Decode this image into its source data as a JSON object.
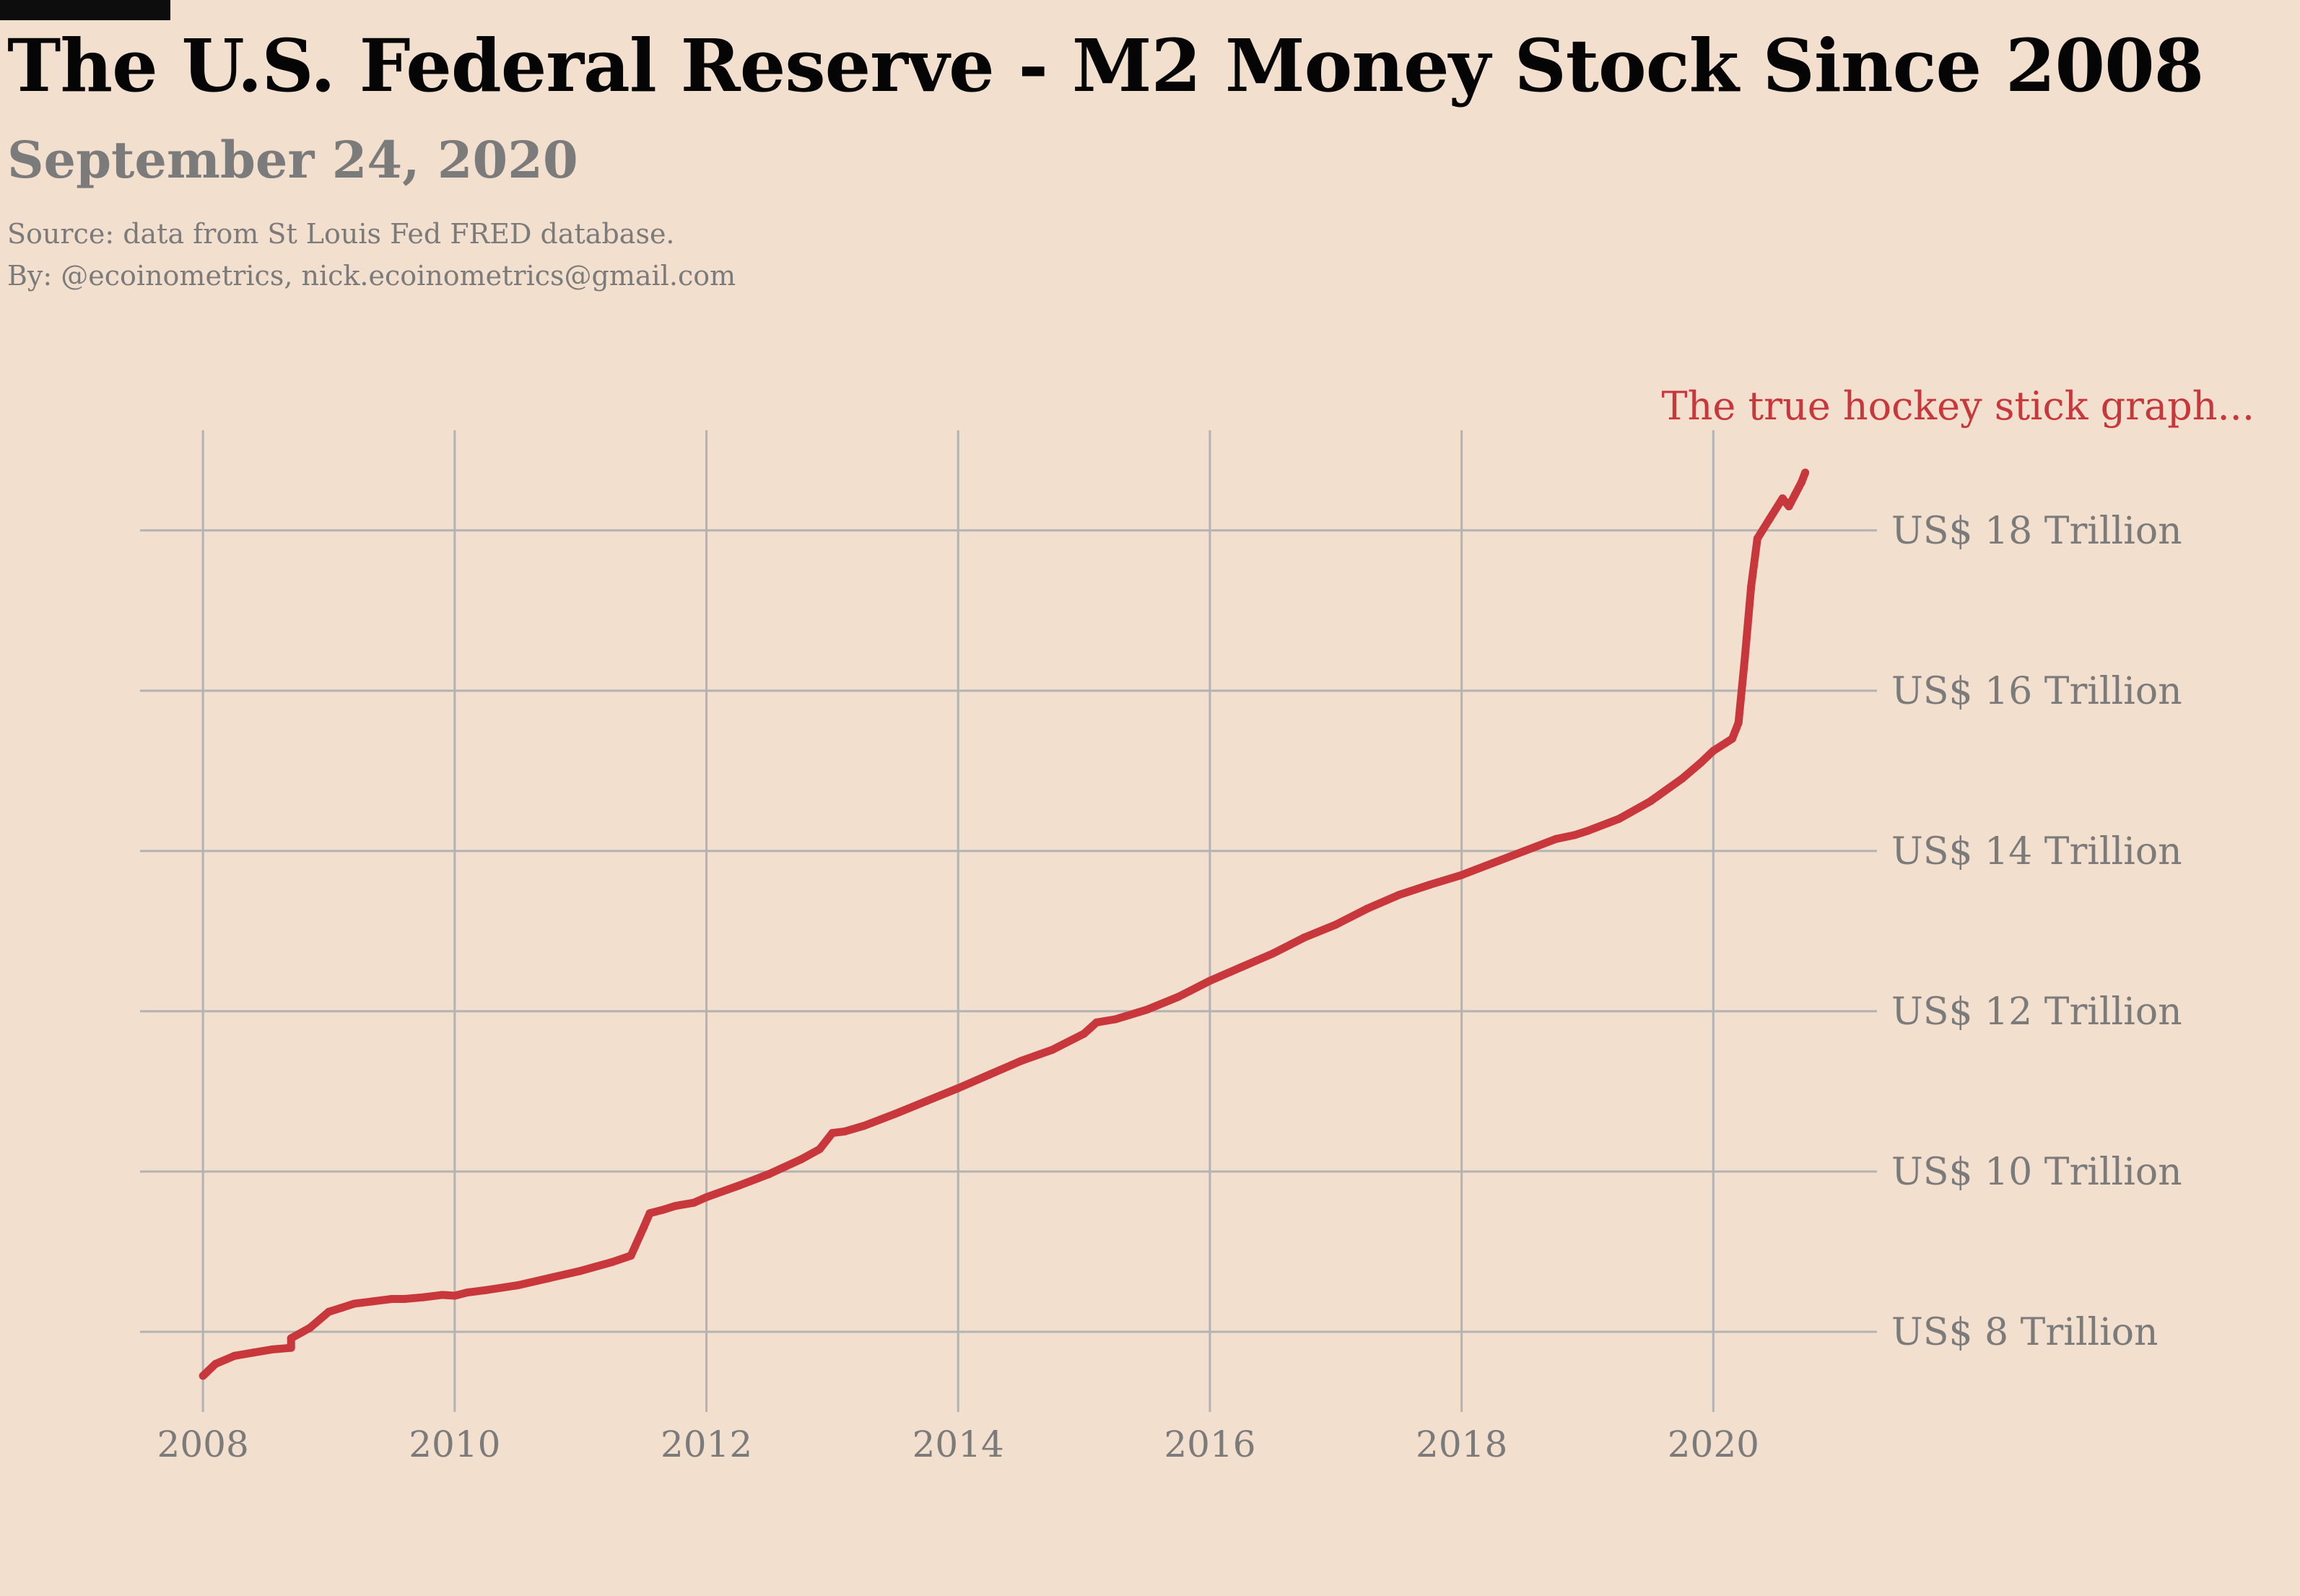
{
  "header": {
    "title": "The U.S. Federal Reserve - M2 Money Stock Since 2008",
    "subtitle": "September 24, 2020",
    "source": "Source: data from  St Louis Fed FRED database.",
    "byline": "By: @ecoinometrics, nick.ecoinometrics@gmail.com"
  },
  "colors": {
    "background": "#f2dfce",
    "line": "#c8373b",
    "grid": "#b3b3b3",
    "tick_text": "#7b7b7b",
    "annotation": "#c8373b"
  },
  "chart_data": {
    "type": "line",
    "title": "The U.S. Federal Reserve - M2 Money Stock Since 2008",
    "subtitle": "September 24, 2020",
    "annotation": "The true hockey stick graph...",
    "xlabel": "",
    "ylabel": "",
    "xlim": [
      2007.5,
      2021.3
    ],
    "ylim": [
      7.0,
      19.25
    ],
    "xticks": [
      2008,
      2010,
      2012,
      2014,
      2016,
      2018,
      2020
    ],
    "xtick_labels": [
      "2008",
      "2010",
      "2012",
      "2014",
      "2016",
      "2018",
      "2020"
    ],
    "yticks": [
      8,
      10,
      12,
      14,
      16,
      18
    ],
    "ytick_labels": [
      "US$ 8 Trillion",
      "US$ 10 Trillion",
      "US$ 12 Trillion",
      "US$ 14 Trillion",
      "US$ 16 Trillion",
      "US$ 18 Trillion"
    ],
    "y_axis_position": "right",
    "grid": true,
    "legend": "none",
    "series": [
      {
        "x": [
          2008.0,
          2008.1,
          2008.25,
          2008.4,
          2008.55,
          2008.7,
          2008.7,
          2008.85,
          2009.0,
          2009.1,
          2009.2,
          2009.35,
          2009.5,
          2009.6,
          2009.75,
          2009.9,
          2010.0,
          2010.1,
          2010.25,
          2010.5,
          2010.75,
          2011.0,
          2011.25,
          2011.4,
          2011.5,
          2011.55,
          2011.65,
          2011.75,
          2011.9,
          2012.0,
          2012.25,
          2012.5,
          2012.75,
          2012.9,
          2013.0,
          2013.1,
          2013.25,
          2013.5,
          2013.75,
          2014.0,
          2014.25,
          2014.5,
          2014.75,
          2015.0,
          2015.1,
          2015.25,
          2015.5,
          2015.75,
          2016.0,
          2016.25,
          2016.5,
          2016.75,
          2017.0,
          2017.25,
          2017.5,
          2017.75,
          2018.0,
          2018.25,
          2018.5,
          2018.75,
          2018.9,
          2019.0,
          2019.25,
          2019.5,
          2019.75,
          2019.9,
          2020.0,
          2020.1,
          2020.15,
          2020.2,
          2020.25,
          2020.3,
          2020.35,
          2020.45,
          2020.55,
          2020.6,
          2020.65,
          2020.7,
          2020.73
        ],
        "values": [
          7.45,
          7.6,
          7.7,
          7.74,
          7.78,
          7.8,
          7.92,
          8.05,
          8.25,
          8.3,
          8.35,
          8.38,
          8.41,
          8.41,
          8.43,
          8.46,
          8.45,
          8.49,
          8.52,
          8.58,
          8.67,
          8.76,
          8.87,
          8.95,
          9.3,
          9.48,
          9.52,
          9.57,
          9.61,
          9.68,
          9.82,
          9.97,
          10.15,
          10.28,
          10.48,
          10.5,
          10.57,
          10.72,
          10.88,
          11.04,
          11.21,
          11.38,
          11.52,
          11.72,
          11.86,
          11.9,
          12.02,
          12.18,
          12.38,
          12.55,
          12.72,
          12.92,
          13.08,
          13.28,
          13.45,
          13.58,
          13.7,
          13.85,
          14.0,
          14.15,
          14.2,
          14.25,
          14.4,
          14.62,
          14.9,
          15.1,
          15.25,
          15.35,
          15.4,
          15.6,
          16.4,
          17.3,
          17.9,
          18.15,
          18.4,
          18.3,
          18.45,
          18.6,
          18.72
        ]
      }
    ]
  }
}
